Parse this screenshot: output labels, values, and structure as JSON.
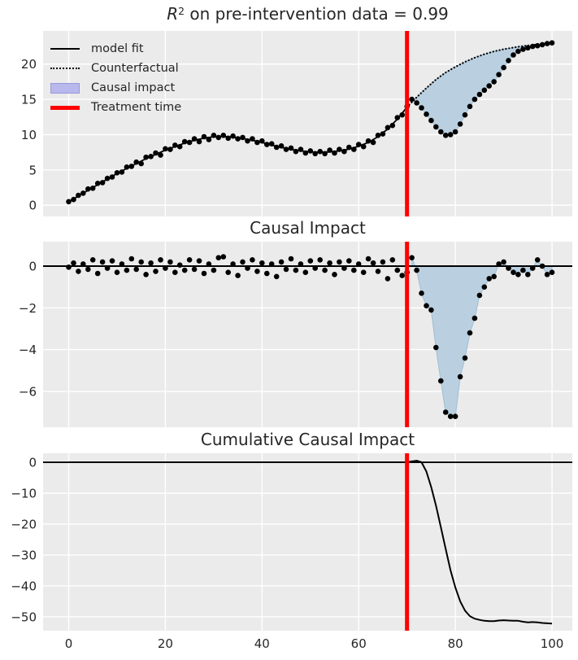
{
  "figure": {
    "bg": "#ffffff",
    "axes_bg": "#ebebeb",
    "grid_color": "#ffffff",
    "text_color": "#262626",
    "accent_red": "#ff0000",
    "scatter_color": "#000000",
    "fill_color": "#bad0e0",
    "fill_edge": "#a3c2d6",
    "legend_patch_fill": "#b8b8ec",
    "legend_patch_edge": "#9898da"
  },
  "chart_data": [
    {
      "name": "pre-intervention-fit-plot",
      "type": "line+scatter+fill",
      "title_parts": {
        "r": "R",
        "sup": "2",
        "rest": " on pre-intervention data = 0.99"
      },
      "xlim": [
        -5.3,
        104.2
      ],
      "ylim": [
        -1.6,
        24.7
      ],
      "xticks": [
        0,
        20,
        40,
        60,
        80,
        100
      ],
      "yticks": [
        0,
        5,
        10,
        15,
        20
      ],
      "show_xtick_labels": false,
      "grid": true,
      "treatment_x": 70,
      "legend_position": "upper-left",
      "legend": [
        {
          "label": "model fit",
          "swatch": "solid-black-line"
        },
        {
          "label": "Counterfactual",
          "swatch": "dotted-black-line"
        },
        {
          "label": "Causal impact",
          "swatch": "blue-patch"
        },
        {
          "label": "Treatment time",
          "swatch": "thick-red-line"
        }
      ],
      "series": [
        {
          "name": "model-fit",
          "type": "line",
          "color": "#000000",
          "width": 1.8,
          "x": [
            0,
            2,
            4,
            6,
            8,
            10,
            12,
            14,
            16,
            18,
            20,
            22,
            24,
            26,
            28,
            30,
            32,
            34,
            36,
            38,
            40,
            42,
            44,
            46,
            48,
            50,
            52,
            54,
            56,
            58,
            60,
            62,
            64,
            66,
            68,
            70
          ],
          "y": [
            0.5,
            1.3,
            2.1,
            2.9,
            3.7,
            4.5,
            5.2,
            5.9,
            6.6,
            7.2,
            7.8,
            8.3,
            8.8,
            9.2,
            9.5,
            9.7,
            9.75,
            9.65,
            9.45,
            9.2,
            8.9,
            8.5,
            8.2,
            7.9,
            7.7,
            7.55,
            7.5,
            7.55,
            7.7,
            7.95,
            8.35,
            8.9,
            9.7,
            10.8,
            12.2,
            13.9
          ]
        },
        {
          "name": "counterfactual",
          "type": "dotted",
          "color": "#000000",
          "width": 2.2,
          "x": [
            70,
            72,
            74,
            76,
            78,
            80,
            82,
            84,
            86,
            88,
            90,
            92,
            94,
            96,
            98,
            100
          ],
          "y": [
            13.9,
            15.3,
            16.6,
            17.8,
            18.8,
            19.6,
            20.3,
            20.9,
            21.4,
            21.8,
            22.1,
            22.35,
            22.55,
            22.7,
            22.85,
            23.0
          ]
        },
        {
          "name": "observed-points",
          "type": "scatter",
          "color": "#000000",
          "x0": 0,
          "dx": 1,
          "y": [
            0.5,
            0.8,
            1.4,
            1.7,
            2.3,
            2.4,
            3.1,
            3.2,
            3.8,
            4.0,
            4.6,
            4.7,
            5.4,
            5.5,
            6.1,
            5.9,
            6.8,
            6.9,
            7.4,
            7.1,
            8.0,
            7.9,
            8.5,
            8.3,
            9.0,
            8.9,
            9.4,
            9.0,
            9.7,
            9.3,
            9.9,
            9.6,
            9.9,
            9.5,
            9.8,
            9.4,
            9.6,
            9.1,
            9.4,
            8.9,
            9.1,
            8.6,
            8.7,
            8.2,
            8.4,
            7.9,
            8.1,
            7.6,
            7.9,
            7.4,
            7.7,
            7.3,
            7.6,
            7.3,
            7.8,
            7.4,
            7.9,
            7.6,
            8.2,
            7.9,
            8.6,
            8.3,
            9.1,
            8.9,
            9.9,
            10.1,
            11.0,
            11.3,
            12.4,
            12.8,
            14.0,
            15.0,
            14.5,
            13.8,
            12.9,
            12.0,
            11.1,
            10.4,
            9.9,
            10.0,
            10.4,
            11.5,
            12.8,
            14.0,
            15.0,
            15.7,
            16.3,
            16.9,
            17.5,
            18.5,
            19.5,
            20.5,
            21.3,
            21.8,
            22.1,
            22.3,
            22.5,
            22.6,
            22.75,
            22.9,
            23.0
          ]
        }
      ],
      "fill": {
        "x": [
          71,
          72,
          73,
          74,
          75,
          76,
          77,
          78,
          79,
          80,
          81,
          82,
          83,
          84,
          85,
          86,
          87,
          88,
          89,
          90,
          91,
          92,
          93,
          94,
          95
        ],
        "upper": [
          14.6,
          15.3,
          15.95,
          16.6,
          17.2,
          17.8,
          18.3,
          18.8,
          19.2,
          19.6,
          19.95,
          20.3,
          20.6,
          20.9,
          21.15,
          21.4,
          21.6,
          21.8,
          21.95,
          22.1,
          22.2,
          22.35,
          22.45,
          22.55,
          22.65
        ],
        "lower": [
          15.0,
          14.5,
          13.8,
          12.9,
          12.0,
          11.1,
          10.4,
          9.9,
          10.0,
          10.4,
          11.5,
          12.8,
          14.0,
          15.0,
          15.7,
          16.3,
          16.9,
          17.5,
          18.5,
          19.5,
          20.5,
          21.3,
          21.8,
          22.1,
          22.3
        ]
      }
    },
    {
      "name": "pointwise-impact-plot",
      "type": "scatter+fill",
      "title": "Causal Impact",
      "xlim": [
        -5.3,
        104.2
      ],
      "ylim": [
        -7.72,
        1.17
      ],
      "xticks": [
        0,
        20,
        40,
        60,
        80,
        100
      ],
      "yticks": [
        0,
        -2,
        -4,
        -6
      ],
      "show_xtick_labels": false,
      "grid": true,
      "zero_line": true,
      "treatment_x": 70,
      "series": [
        {
          "name": "pointwise-effect",
          "type": "scatter",
          "color": "#000000",
          "x0": 0,
          "dx": 1,
          "y": [
            -0.05,
            0.15,
            -0.25,
            0.1,
            -0.15,
            0.3,
            -0.35,
            0.2,
            -0.1,
            0.25,
            -0.3,
            0.1,
            -0.2,
            0.35,
            -0.15,
            0.2,
            -0.4,
            0.15,
            -0.25,
            0.3,
            -0.1,
            0.2,
            -0.3,
            0.05,
            -0.2,
            0.3,
            -0.15,
            0.25,
            -0.35,
            0.1,
            -0.2,
            0.4,
            0.45,
            -0.3,
            0.1,
            -0.45,
            0.2,
            -0.1,
            0.3,
            -0.25,
            0.15,
            -0.35,
            0.1,
            -0.5,
            0.2,
            -0.15,
            0.35,
            -0.2,
            0.1,
            -0.3,
            0.25,
            -0.1,
            0.3,
            -0.2,
            0.15,
            -0.4,
            0.2,
            -0.1,
            0.25,
            -0.2,
            0.1,
            -0.3,
            0.35,
            0.15,
            -0.25,
            0.2,
            -0.6,
            0.3,
            -0.2,
            -0.45,
            -0.3,
            0.4,
            -0.2,
            -1.3,
            -1.9,
            -2.1,
            -3.9,
            -5.5,
            -7.0,
            -7.2,
            -7.2,
            -5.3,
            -4.4,
            -3.2,
            -2.5,
            -1.4,
            -1.0,
            -0.6,
            -0.5,
            0.1,
            0.2,
            -0.1,
            -0.3,
            -0.4,
            -0.2,
            -0.4,
            -0.1,
            0.3,
            0.0,
            -0.4,
            -0.3
          ]
        }
      ],
      "fill": {
        "x": [
          71,
          72,
          73,
          74,
          75,
          76,
          77,
          78,
          79,
          80,
          81,
          82,
          83,
          84,
          85,
          86,
          87,
          88,
          89,
          90,
          91,
          92,
          93,
          94,
          95,
          96,
          97,
          98,
          99,
          100
        ],
        "upper": [
          0,
          0,
          0,
          0,
          0,
          0,
          0,
          0,
          0,
          0,
          0,
          0,
          0,
          0,
          0,
          0,
          0,
          0,
          0,
          0,
          0,
          0,
          0,
          0,
          0,
          0,
          0,
          0,
          0,
          0
        ],
        "lower": [
          0.4,
          -0.2,
          -1.3,
          -1.9,
          -2.1,
          -3.9,
          -5.5,
          -7.0,
          -7.2,
          -7.2,
          -5.3,
          -4.4,
          -3.2,
          -2.5,
          -1.4,
          -1.0,
          -0.6,
          -0.5,
          0.1,
          0.2,
          -0.1,
          -0.3,
          -0.4,
          -0.2,
          -0.4,
          -0.1,
          0.3,
          0.0,
          -0.4,
          -0.3
        ]
      }
    },
    {
      "name": "cumulative-impact-plot",
      "type": "line",
      "title": "Cumulative Causal Impact",
      "xlim": [
        -5.3,
        104.2
      ],
      "ylim": [
        -54.5,
        2.9
      ],
      "xticks": [
        0,
        20,
        40,
        60,
        80,
        100
      ],
      "xtick_labels": [
        "0",
        "20",
        "40",
        "60",
        "80",
        "100"
      ],
      "yticks": [
        0,
        -10,
        -20,
        -30,
        -40,
        -50
      ],
      "show_xtick_labels": true,
      "grid": true,
      "zero_line": true,
      "treatment_x": 70,
      "series": [
        {
          "name": "cumulative-effect",
          "type": "line",
          "color": "#000000",
          "width": 2,
          "x0": 0,
          "dx": 1,
          "y": [
            0,
            0,
            0,
            0,
            0,
            0,
            0,
            0,
            0,
            0,
            0,
            0,
            0,
            0,
            0,
            0,
            0,
            0,
            0,
            0,
            0,
            0,
            0,
            0,
            0,
            0,
            0,
            0,
            0,
            0,
            0,
            0,
            0,
            0,
            0,
            0,
            0,
            0,
            0,
            0,
            0,
            0,
            0,
            0,
            0,
            0,
            0,
            0,
            0,
            0,
            0,
            0,
            0,
            0,
            0,
            0,
            0,
            0,
            0,
            0,
            0,
            0,
            0,
            0,
            0,
            0,
            0,
            0,
            0,
            0,
            0,
            0.3,
            0.5,
            0.0,
            -3,
            -8,
            -14,
            -21,
            -28,
            -35,
            -40.5,
            -45,
            -48,
            -49.8,
            -50.6,
            -51,
            -51.3,
            -51.4,
            -51.4,
            -51.2,
            -51.1,
            -51.2,
            -51.3,
            -51.3,
            -51.6,
            -51.8,
            -51.7,
            -51.8,
            -52,
            -52.1,
            -52.2
          ]
        }
      ]
    }
  ]
}
